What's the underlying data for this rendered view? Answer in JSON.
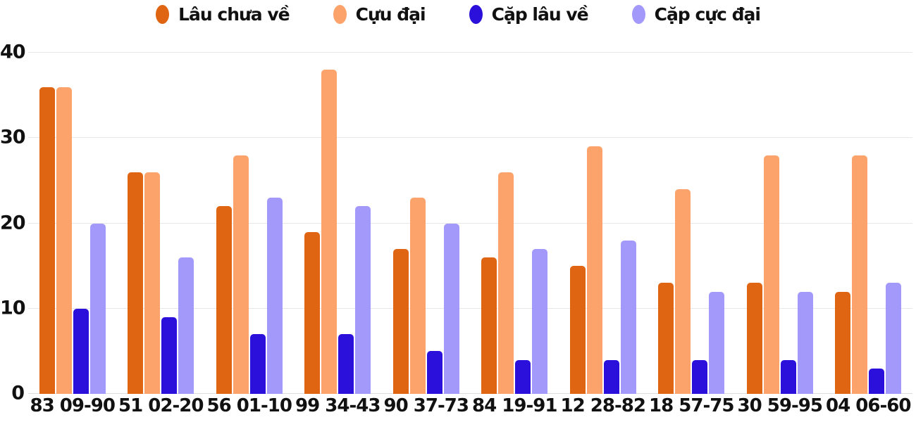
{
  "chart_data": {
    "type": "bar",
    "title": "",
    "xlabel": "",
    "ylabel": "",
    "ylim": [
      0,
      40
    ],
    "yticks": [
      0,
      10,
      20,
      30,
      40
    ],
    "grid": true,
    "legend_position": "top",
    "categories": [
      "83 09-90",
      "51 02-20",
      "56 01-10",
      "99 34-43",
      "90 37-73",
      "84 19-91",
      "12 28-82",
      "18 57-75",
      "30 59-95",
      "04 06-60"
    ],
    "series": [
      {
        "name": "Lâu chưa về",
        "color": "#e06513",
        "values": [
          36,
          26,
          22,
          19,
          17,
          16,
          15,
          13,
          13,
          12
        ]
      },
      {
        "name": "Cựu đại",
        "color": "#fca36c",
        "values": [
          36,
          26,
          28,
          38,
          23,
          26,
          29,
          24,
          28,
          28
        ]
      },
      {
        "name": "Cặp lâu về",
        "color": "#2a10da",
        "values": [
          10,
          9,
          7,
          7,
          5,
          4,
          4,
          4,
          4,
          3
        ]
      },
      {
        "name": "Cặp cực đại",
        "color": "#a299fb",
        "values": [
          20,
          16,
          23,
          22,
          20,
          17,
          18,
          12,
          12,
          13
        ]
      }
    ],
    "colors": {
      "text": "#111111",
      "gridline": "#e7e7e7",
      "baseline": "#dcdcdc",
      "background": "#ffffff"
    }
  }
}
